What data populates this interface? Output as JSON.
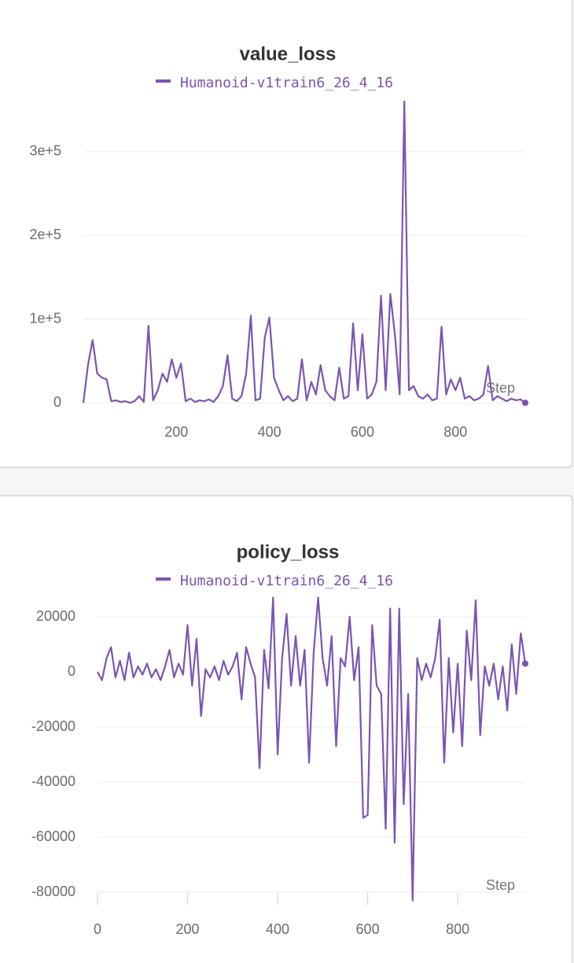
{
  "chart_data": [
    {
      "type": "line",
      "title": "value_loss",
      "xlabel": "Step",
      "x": [
        0,
        10,
        20,
        30,
        40,
        50,
        60,
        70,
        80,
        90,
        100,
        110,
        120,
        130,
        140,
        150,
        160,
        170,
        180,
        190,
        200,
        210,
        220,
        230,
        240,
        250,
        260,
        270,
        280,
        290,
        300,
        310,
        320,
        330,
        340,
        350,
        360,
        370,
        380,
        390,
        400,
        410,
        420,
        430,
        440,
        450,
        460,
        470,
        480,
        490,
        500,
        510,
        520,
        530,
        540,
        550,
        560,
        570,
        580,
        590,
        600,
        610,
        620,
        630,
        640,
        650,
        660,
        670,
        680,
        690,
        700,
        710,
        720,
        730,
        740,
        750,
        760,
        770,
        780,
        790,
        800,
        810,
        820,
        830,
        840,
        850,
        860,
        870,
        880,
        890,
        900,
        910,
        920,
        930,
        940,
        950
      ],
      "series": [
        {
          "name": "Humanoid-v1train6_26_4_16",
          "color": "#7a55b3",
          "values": [
            0,
            45000,
            75000,
            35000,
            30000,
            28000,
            2000,
            3000,
            1000,
            2000,
            0,
            2000,
            8000,
            1000,
            92000,
            3000,
            15000,
            35000,
            25000,
            52000,
            30000,
            47000,
            2000,
            5000,
            1000,
            3000,
            2000,
            4000,
            1000,
            8000,
            20000,
            57000,
            5000,
            2000,
            8000,
            35000,
            104000,
            3000,
            5000,
            78000,
            102000,
            30000,
            15000,
            3000,
            8000,
            2000,
            5000,
            52000,
            3000,
            25000,
            10000,
            45000,
            15000,
            8000,
            3000,
            42000,
            5000,
            8000,
            95000,
            15000,
            82000,
            5000,
            10000,
            25000,
            128000,
            15000,
            130000,
            80000,
            10000,
            360000,
            15000,
            20000,
            8000,
            5000,
            10000,
            3000,
            5000,
            91000,
            10000,
            28000,
            15000,
            30000,
            5000,
            8000,
            3000,
            5000,
            10000,
            44000,
            3000,
            8000,
            5000,
            2000,
            5000,
            3000,
            4000,
            0
          ]
        }
      ],
      "xlim": [
        0,
        950
      ],
      "xticks": [
        200,
        400,
        600,
        800
      ],
      "ylim": [
        0,
        360000
      ],
      "yticks": [
        0,
        {
          "value": 100000,
          "label": "1e+5"
        },
        {
          "value": 200000,
          "label": "2e+5"
        },
        {
          "value": 300000,
          "label": "3e+5"
        }
      ],
      "grid": true
    },
    {
      "type": "line",
      "title": "policy_loss",
      "xlabel": "Step",
      "x": [
        0,
        10,
        20,
        30,
        40,
        50,
        60,
        70,
        80,
        90,
        100,
        110,
        120,
        130,
        140,
        150,
        160,
        170,
        180,
        190,
        200,
        210,
        220,
        230,
        240,
        250,
        260,
        270,
        280,
        290,
        300,
        310,
        320,
        330,
        340,
        350,
        360,
        370,
        380,
        390,
        400,
        410,
        420,
        430,
        440,
        450,
        460,
        470,
        480,
        490,
        500,
        510,
        520,
        530,
        540,
        550,
        560,
        570,
        580,
        590,
        600,
        610,
        620,
        630,
        640,
        650,
        660,
        670,
        680,
        690,
        700,
        710,
        720,
        730,
        740,
        750,
        760,
        770,
        780,
        790,
        800,
        810,
        820,
        830,
        840,
        850,
        860,
        870,
        880,
        890,
        900,
        910,
        920,
        930,
        940,
        950
      ],
      "series": [
        {
          "name": "Humanoid-v1train6_26_4_16",
          "color": "#7a55b3",
          "values": [
            0,
            -3000,
            5000,
            9000,
            -2000,
            4000,
            -3000,
            7000,
            -2000,
            2000,
            -1000,
            3000,
            -2000,
            1000,
            -3000,
            2000,
            8000,
            -2000,
            3000,
            -1000,
            17000,
            -5000,
            12000,
            -16000,
            1000,
            -2000,
            2000,
            -3000,
            4000,
            -1000,
            2000,
            7000,
            -10000,
            9000,
            3000,
            -2000,
            -35000,
            8000,
            -6000,
            27000,
            -30000,
            5000,
            21000,
            -5000,
            13000,
            -5000,
            8000,
            -33000,
            7000,
            27000,
            5000,
            -5000,
            13000,
            -27000,
            5000,
            2000,
            20000,
            -3000,
            9000,
            -53000,
            -52000,
            17000,
            -5000,
            -8000,
            -57000,
            23000,
            -62000,
            23000,
            -48000,
            -8000,
            -83000,
            5000,
            -3000,
            3000,
            -2000,
            5000,
            19000,
            -33000,
            5000,
            -22000,
            3000,
            -27000,
            15000,
            -3000,
            26000,
            -23000,
            2000,
            -5000,
            3000,
            -10000,
            2000,
            -14000,
            10000,
            -8000,
            14000,
            3000
          ]
        }
      ],
      "xlim": [
        0,
        950
      ],
      "xticks": [
        0,
        200,
        400,
        600,
        800
      ],
      "ylim": [
        -83000,
        27000
      ],
      "yticks": [
        20000,
        0,
        -20000,
        -40000,
        -60000,
        -80000
      ],
      "grid": true
    }
  ]
}
